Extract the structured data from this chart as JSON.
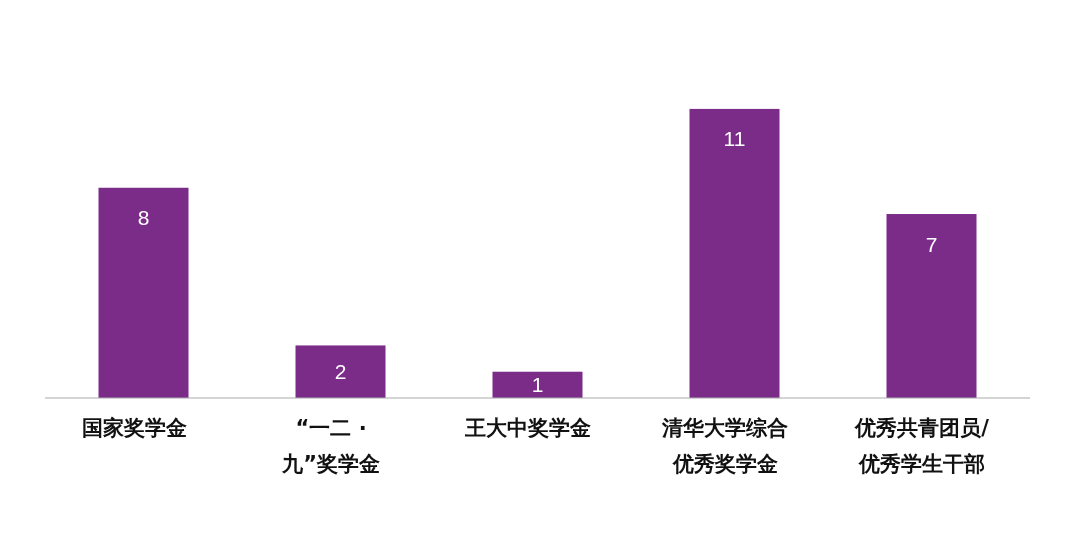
{
  "chart_data": {
    "type": "bar",
    "categories": [
      "国家奖学金",
      "“一二 · 九”奖学金",
      "王大中奖学金",
      "清华大学综合优秀奖学金",
      "优秀共青团员/优秀学生干部"
    ],
    "values": [
      8,
      2,
      1,
      11,
      7
    ],
    "color": "#7b2c89",
    "data_labels": true
  }
}
